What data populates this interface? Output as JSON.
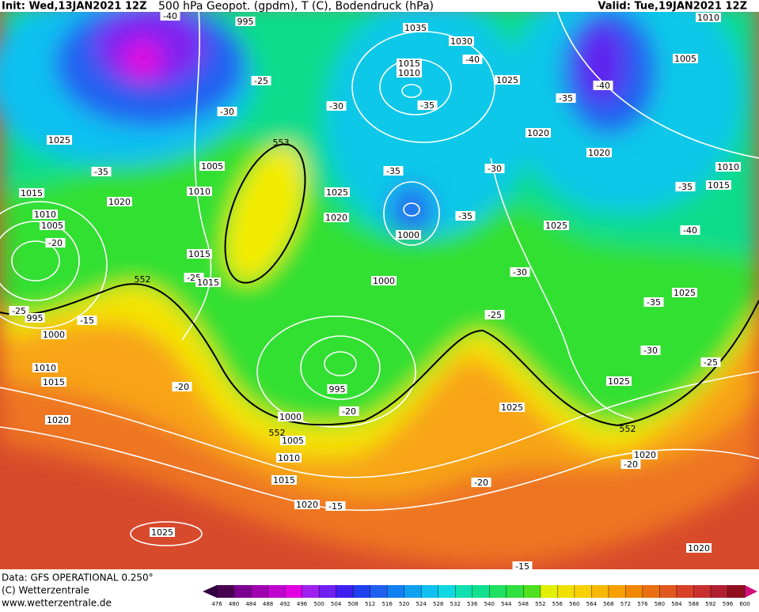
{
  "header": {
    "init": "Init: Wed,13JAN2021 12Z",
    "title": "500 hPa Geopot. (gpdm), T (C), Bodendruck (hPa)",
    "valid": "Valid: Tue,19JAN2021 12Z"
  },
  "footer": {
    "data": "Data: GFS OPERATIONAL 0.250°",
    "copyright": "(C) Wetterzentrale",
    "url": "www.wetterzentrale.de"
  },
  "map": {
    "labels": [
      995,
      1035,
      1030,
      -40,
      -40,
      1015,
      1010,
      1025,
      -25,
      -30,
      -30,
      -35,
      -35,
      -40,
      1005,
      1010,
      1025,
      1020,
      1020,
      553,
      -35,
      1005,
      1010,
      -35,
      -30,
      1010,
      1015,
      -35,
      1015,
      1020,
      1025,
      1020,
      -35,
      1010,
      1005,
      1025,
      1000,
      -40,
      -20,
      1015,
      552,
      -25,
      1015,
      1000,
      -30,
      1025,
      -35,
      -25,
      995,
      -15,
      -25,
      1000,
      -30,
      -25,
      1010,
      1015,
      -20,
      995,
      1025,
      -20,
      1025,
      1020,
      1000,
      552,
      1005,
      552,
      1010,
      1020,
      -20,
      1015,
      -20,
      1020,
      -15,
      1025,
      1020,
      -15
    ]
  },
  "colorbar": {
    "levels": [
      476,
      480,
      484,
      488,
      492,
      496,
      500,
      504,
      508,
      512,
      516,
      520,
      524,
      528,
      532,
      536,
      540,
      544,
      548,
      552,
      556,
      560,
      564,
      568,
      572,
      576,
      580,
      584,
      588,
      592,
      596,
      600
    ],
    "colors": [
      "#4a0050",
      "#7a0090",
      "#a000b0",
      "#c000d0",
      "#e000e0",
      "#a020f0",
      "#7020f0",
      "#4020f0",
      "#2040f0",
      "#2060f0",
      "#1080f0",
      "#10a0f0",
      "#10c0f0",
      "#10d8e0",
      "#10e0b0",
      "#10e090",
      "#20e060",
      "#30e040",
      "#50e020",
      "#e0f000",
      "#f0e000",
      "#f8d000",
      "#f8b800",
      "#f8a000",
      "#f08800",
      "#e87010",
      "#e05820",
      "#d84028",
      "#c83030",
      "#b02030",
      "#901020"
    ],
    "under_color": "#300040",
    "over_color": "#d0107a"
  }
}
